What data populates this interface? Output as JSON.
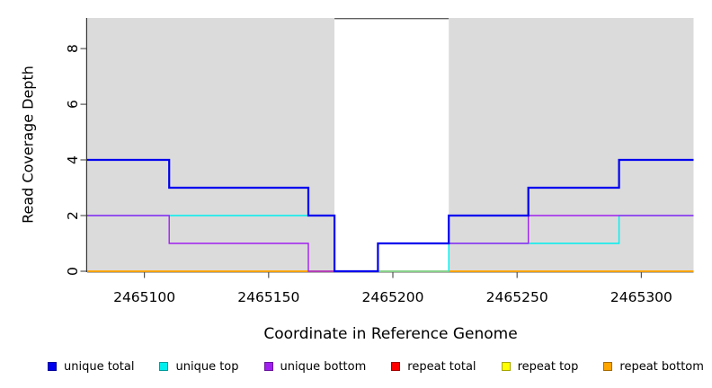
{
  "chart_data": {
    "type": "line",
    "subtype": "step-coverage",
    "title": "",
    "xlabel": "Coordinate in Reference Genome",
    "ylabel": "Read Coverage Depth",
    "grid": false,
    "panel_color": "#dbdbdb",
    "x_axis": {
      "ticks": [
        2465100,
        2465150,
        2465200,
        2465250,
        2465300
      ],
      "range": [
        2465077,
        2465321
      ]
    },
    "y_axis": {
      "ticks": [
        0,
        2,
        4,
        6,
        8
      ],
      "range": [
        0,
        9.1
      ]
    },
    "background_regions": [
      {
        "name": "covered-left",
        "x0": 2465077,
        "x1": 2465176.5,
        "color": "#dbdbdb"
      },
      {
        "name": "uncovered-gap",
        "x0": 2465176.5,
        "x1": 2465222.5,
        "color": "#ffffff",
        "top_border": "#616161"
      },
      {
        "name": "covered-right",
        "x0": 2465222.5,
        "x1": 2465321,
        "color": "#dbdbdb"
      }
    ],
    "series": [
      {
        "name": "repeat total",
        "color": "#ff0000",
        "width": 1.4,
        "steps": [
          [
            2465077,
            0
          ],
          [
            2465321,
            0
          ]
        ]
      },
      {
        "name": "repeat top",
        "color": "#ffff00",
        "width": 1.4,
        "steps": [
          [
            2465077,
            0
          ],
          [
            2465321,
            0
          ]
        ]
      },
      {
        "name": "repeat bottom",
        "color": "#ffa500",
        "width": 1.6,
        "steps": [
          [
            2465077,
            0
          ],
          [
            2465321,
            0
          ]
        ]
      },
      {
        "name": "unique top",
        "color": "#00eeee",
        "width": 1.4,
        "steps": [
          [
            2465077,
            2
          ],
          [
            2465176.5,
            0
          ],
          [
            2465222.5,
            1
          ],
          [
            2465291,
            2
          ],
          [
            2465321,
            2
          ]
        ]
      },
      {
        "name": "cyan yellow overlap",
        "color": "#8fd48f",
        "width": 1.4,
        "steps": [
          [
            2465194,
            0
          ],
          [
            2465222.5,
            0
          ]
        ]
      },
      {
        "name": "unique bottom",
        "color": "#a020f0",
        "width": 1.4,
        "steps": [
          [
            2465077,
            2
          ],
          [
            2465110,
            1
          ],
          [
            2465166,
            0
          ],
          [
            2465194,
            1
          ],
          [
            2465254.5,
            2
          ],
          [
            2465321,
            2
          ]
        ]
      },
      {
        "name": "unique total",
        "color": "#0000ee",
        "width": 2.2,
        "steps": [
          [
            2465077,
            4
          ],
          [
            2465110,
            3
          ],
          [
            2465166,
            2
          ],
          [
            2465176.5,
            0
          ],
          [
            2465194,
            1
          ],
          [
            2465222.5,
            2
          ],
          [
            2465254.5,
            3
          ],
          [
            2465291,
            4
          ],
          [
            2465321,
            4
          ]
        ]
      }
    ],
    "legend": [
      {
        "label": "unique total",
        "color": "#0000ee"
      },
      {
        "label": "unique top",
        "color": "#00eeee"
      },
      {
        "label": "unique bottom",
        "color": "#a020f0"
      },
      {
        "label": "repeat total",
        "color": "#ff0000"
      },
      {
        "label": "repeat top",
        "color": "#ffff00"
      },
      {
        "label": "repeat bottom",
        "color": "#ffa500"
      }
    ],
    "axis_color": "#333333",
    "tick_color": "#555555"
  }
}
